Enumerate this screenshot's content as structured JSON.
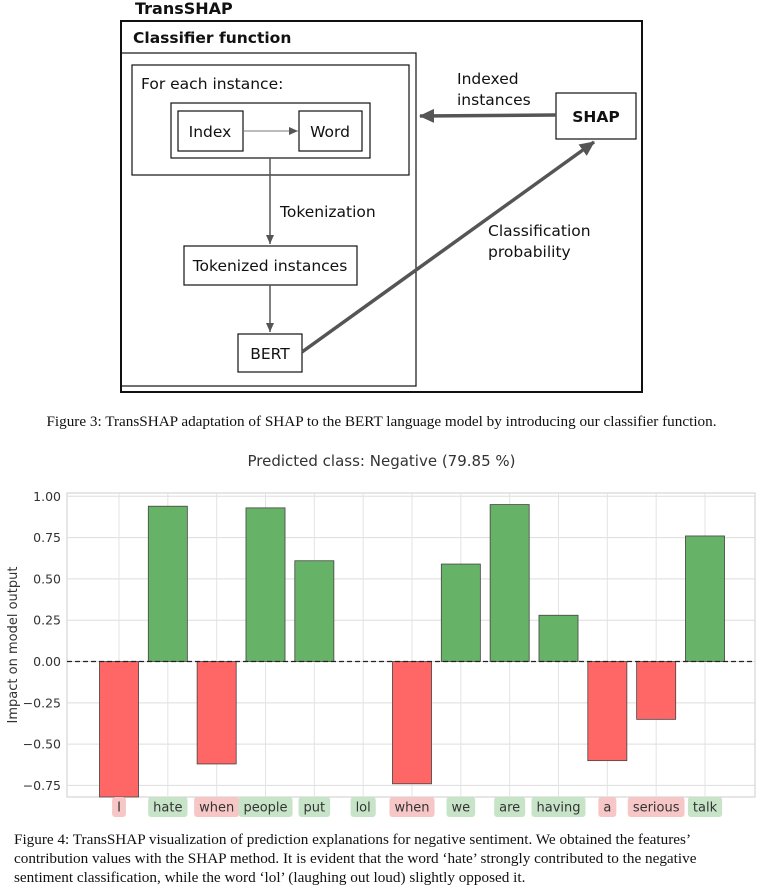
{
  "diagram": {
    "outer_title": "TransSHAP",
    "classifier_title": "Classifier function",
    "for_each_label": "For each instance:",
    "index_label": "Index",
    "word_label": "Word",
    "tokenization_label": "Tokenization",
    "tokenized_label": "Tokenized instances",
    "bert_label": "BERT",
    "shap_label": "SHAP",
    "indexed_line1": "Indexed",
    "indexed_line2": "instances",
    "classprob_line1": "Classification",
    "classprob_line2": "probability"
  },
  "figure3_caption": "Figure 3: TransSHAP adaptation of SHAP to the BERT language model by introducing our classifier function.",
  "figure4_caption_lines": [
    "Figure 4: TransSHAP visualization of prediction explanations for negative sentiment. We obtained the features’",
    "contribution values with the SHAP method. It is evident that the word ‘hate’ strongly contributed to the negative",
    "sentiment classification, while the word ‘lol’ (laughing out loud) slightly opposed it."
  ],
  "chart_data": {
    "type": "bar",
    "title": "Predicted class: Negative (79.85 %)",
    "ylabel": "Impact on model output",
    "xlabel": "",
    "ylim": [
      -0.82,
      1.02
    ],
    "yticks": [
      1.0,
      0.75,
      0.5,
      0.25,
      0.0,
      -0.25,
      -0.5,
      -0.75
    ],
    "ytick_labels": [
      "1.00",
      "0.75",
      "0.50",
      "0.25",
      "0.00",
      "−0.25",
      "−0.50",
      "−0.75"
    ],
    "grid": true,
    "categories": [
      "I",
      "hate",
      "when",
      "people",
      "put",
      "lol",
      "when",
      "we",
      "are",
      "having",
      "a",
      "serious",
      "talk"
    ],
    "values": [
      -0.82,
      0.94,
      -0.62,
      0.93,
      0.61,
      0.0,
      -0.74,
      0.59,
      0.95,
      0.28,
      -0.6,
      -0.35,
      0.76
    ],
    "positive_color": "#66b266",
    "negative_color": "#ff6666",
    "positive_label_bg": "#c8e4c8",
    "negative_label_bg": "#f7c7c7"
  }
}
